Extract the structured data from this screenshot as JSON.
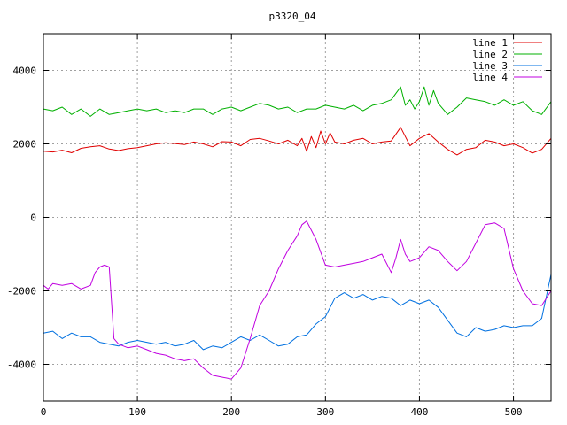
{
  "chart_data": {
    "type": "line",
    "title": "p3320_04",
    "xlabel": "",
    "ylabel": "",
    "xlim": [
      0,
      540
    ],
    "ylim": [
      -5000,
      5000
    ],
    "xticks": [
      0,
      100,
      200,
      300,
      400,
      500
    ],
    "yticks": [
      -4000,
      -2000,
      0,
      2000,
      4000
    ],
    "grid": true,
    "legend_position": "top-right",
    "series": [
      {
        "name": "line 1",
        "color": "#e00000",
        "points": [
          [
            0,
            1800
          ],
          [
            10,
            1780
          ],
          [
            20,
            1830
          ],
          [
            30,
            1760
          ],
          [
            40,
            1880
          ],
          [
            50,
            1920
          ],
          [
            60,
            1950
          ],
          [
            70,
            1860
          ],
          [
            80,
            1820
          ],
          [
            90,
            1870
          ],
          [
            100,
            1900
          ],
          [
            110,
            1950
          ],
          [
            120,
            2000
          ],
          [
            130,
            2030
          ],
          [
            140,
            2010
          ],
          [
            150,
            1980
          ],
          [
            160,
            2050
          ],
          [
            170,
            2000
          ],
          [
            180,
            1920
          ],
          [
            190,
            2060
          ],
          [
            200,
            2050
          ],
          [
            210,
            1950
          ],
          [
            220,
            2120
          ],
          [
            230,
            2150
          ],
          [
            240,
            2080
          ],
          [
            250,
            2000
          ],
          [
            260,
            2100
          ],
          [
            270,
            1950
          ],
          [
            275,
            2150
          ],
          [
            280,
            1800
          ],
          [
            285,
            2200
          ],
          [
            290,
            1900
          ],
          [
            295,
            2350
          ],
          [
            300,
            2000
          ],
          [
            305,
            2300
          ],
          [
            310,
            2050
          ],
          [
            320,
            2000
          ],
          [
            330,
            2100
          ],
          [
            340,
            2150
          ],
          [
            350,
            2000
          ],
          [
            360,
            2050
          ],
          [
            370,
            2080
          ],
          [
            380,
            2450
          ],
          [
            385,
            2200
          ],
          [
            390,
            1950
          ],
          [
            400,
            2150
          ],
          [
            410,
            2280
          ],
          [
            420,
            2050
          ],
          [
            430,
            1850
          ],
          [
            440,
            1700
          ],
          [
            450,
            1850
          ],
          [
            460,
            1900
          ],
          [
            470,
            2100
          ],
          [
            480,
            2050
          ],
          [
            490,
            1950
          ],
          [
            500,
            2000
          ],
          [
            510,
            1900
          ],
          [
            520,
            1750
          ],
          [
            530,
            1850
          ],
          [
            540,
            2150
          ]
        ]
      },
      {
        "name": "line 2",
        "color": "#00b000",
        "points": [
          [
            0,
            2950
          ],
          [
            10,
            2900
          ],
          [
            20,
            3000
          ],
          [
            30,
            2800
          ],
          [
            40,
            2950
          ],
          [
            50,
            2750
          ],
          [
            60,
            2950
          ],
          [
            70,
            2800
          ],
          [
            80,
            2850
          ],
          [
            90,
            2900
          ],
          [
            100,
            2950
          ],
          [
            110,
            2900
          ],
          [
            120,
            2950
          ],
          [
            130,
            2850
          ],
          [
            140,
            2900
          ],
          [
            150,
            2850
          ],
          [
            160,
            2950
          ],
          [
            170,
            2950
          ],
          [
            180,
            2800
          ],
          [
            190,
            2950
          ],
          [
            200,
            3000
          ],
          [
            210,
            2900
          ],
          [
            220,
            3000
          ],
          [
            230,
            3100
          ],
          [
            240,
            3050
          ],
          [
            250,
            2950
          ],
          [
            260,
            3000
          ],
          [
            270,
            2850
          ],
          [
            280,
            2950
          ],
          [
            290,
            2950
          ],
          [
            300,
            3050
          ],
          [
            310,
            3000
          ],
          [
            320,
            2950
          ],
          [
            330,
            3050
          ],
          [
            340,
            2900
          ],
          [
            350,
            3050
          ],
          [
            360,
            3100
          ],
          [
            370,
            3200
          ],
          [
            380,
            3550
          ],
          [
            385,
            3050
          ],
          [
            390,
            3200
          ],
          [
            395,
            2950
          ],
          [
            400,
            3150
          ],
          [
            405,
            3550
          ],
          [
            410,
            3050
          ],
          [
            415,
            3450
          ],
          [
            420,
            3100
          ],
          [
            425,
            2950
          ],
          [
            430,
            2800
          ],
          [
            440,
            3000
          ],
          [
            450,
            3250
          ],
          [
            460,
            3200
          ],
          [
            470,
            3150
          ],
          [
            480,
            3050
          ],
          [
            490,
            3200
          ],
          [
            500,
            3050
          ],
          [
            510,
            3150
          ],
          [
            520,
            2900
          ],
          [
            530,
            2800
          ],
          [
            540,
            3150
          ]
        ]
      },
      {
        "name": "line 3",
        "color": "#0070e0",
        "points": [
          [
            0,
            -3150
          ],
          [
            10,
            -3100
          ],
          [
            20,
            -3300
          ],
          [
            30,
            -3150
          ],
          [
            40,
            -3250
          ],
          [
            50,
            -3250
          ],
          [
            60,
            -3400
          ],
          [
            70,
            -3450
          ],
          [
            80,
            -3500
          ],
          [
            90,
            -3400
          ],
          [
            100,
            -3350
          ],
          [
            110,
            -3400
          ],
          [
            120,
            -3450
          ],
          [
            130,
            -3400
          ],
          [
            140,
            -3500
          ],
          [
            150,
            -3450
          ],
          [
            160,
            -3350
          ],
          [
            170,
            -3600
          ],
          [
            180,
            -3500
          ],
          [
            190,
            -3550
          ],
          [
            200,
            -3400
          ],
          [
            210,
            -3250
          ],
          [
            220,
            -3350
          ],
          [
            230,
            -3200
          ],
          [
            240,
            -3350
          ],
          [
            250,
            -3500
          ],
          [
            260,
            -3450
          ],
          [
            270,
            -3250
          ],
          [
            280,
            -3200
          ],
          [
            290,
            -2900
          ],
          [
            300,
            -2700
          ],
          [
            310,
            -2200
          ],
          [
            320,
            -2050
          ],
          [
            330,
            -2200
          ],
          [
            340,
            -2100
          ],
          [
            350,
            -2250
          ],
          [
            360,
            -2150
          ],
          [
            370,
            -2200
          ],
          [
            380,
            -2400
          ],
          [
            390,
            -2250
          ],
          [
            400,
            -2350
          ],
          [
            410,
            -2250
          ],
          [
            420,
            -2450
          ],
          [
            430,
            -2800
          ],
          [
            440,
            -3150
          ],
          [
            450,
            -3250
          ],
          [
            460,
            -3000
          ],
          [
            470,
            -3100
          ],
          [
            480,
            -3050
          ],
          [
            490,
            -2950
          ],
          [
            500,
            -3000
          ],
          [
            510,
            -2950
          ],
          [
            520,
            -2950
          ],
          [
            530,
            -2750
          ],
          [
            540,
            -1550
          ]
        ]
      },
      {
        "name": "line 4",
        "color": "#c000e0",
        "points": [
          [
            0,
            -1850
          ],
          [
            5,
            -1950
          ],
          [
            10,
            -1800
          ],
          [
            20,
            -1850
          ],
          [
            30,
            -1800
          ],
          [
            40,
            -1950
          ],
          [
            50,
            -1850
          ],
          [
            55,
            -1500
          ],
          [
            60,
            -1350
          ],
          [
            65,
            -1300
          ],
          [
            70,
            -1350
          ],
          [
            75,
            -3300
          ],
          [
            80,
            -3450
          ],
          [
            90,
            -3550
          ],
          [
            100,
            -3500
          ],
          [
            110,
            -3600
          ],
          [
            120,
            -3700
          ],
          [
            130,
            -3750
          ],
          [
            140,
            -3850
          ],
          [
            150,
            -3900
          ],
          [
            160,
            -3850
          ],
          [
            170,
            -4100
          ],
          [
            180,
            -4300
          ],
          [
            190,
            -4350
          ],
          [
            200,
            -4400
          ],
          [
            210,
            -4100
          ],
          [
            220,
            -3300
          ],
          [
            230,
            -2400
          ],
          [
            240,
            -2000
          ],
          [
            250,
            -1400
          ],
          [
            260,
            -900
          ],
          [
            270,
            -500
          ],
          [
            275,
            -200
          ],
          [
            280,
            -100
          ],
          [
            290,
            -600
          ],
          [
            300,
            -1300
          ],
          [
            310,
            -1350
          ],
          [
            320,
            -1300
          ],
          [
            330,
            -1250
          ],
          [
            340,
            -1200
          ],
          [
            350,
            -1100
          ],
          [
            360,
            -1000
          ],
          [
            370,
            -1500
          ],
          [
            375,
            -1100
          ],
          [
            380,
            -600
          ],
          [
            385,
            -1000
          ],
          [
            390,
            -1200
          ],
          [
            400,
            -1100
          ],
          [
            410,
            -800
          ],
          [
            420,
            -900
          ],
          [
            430,
            -1200
          ],
          [
            440,
            -1450
          ],
          [
            450,
            -1200
          ],
          [
            460,
            -700
          ],
          [
            470,
            -200
          ],
          [
            480,
            -150
          ],
          [
            490,
            -300
          ],
          [
            500,
            -1400
          ],
          [
            510,
            -2000
          ],
          [
            520,
            -2350
          ],
          [
            530,
            -2400
          ],
          [
            540,
            -2000
          ]
        ]
      }
    ]
  }
}
